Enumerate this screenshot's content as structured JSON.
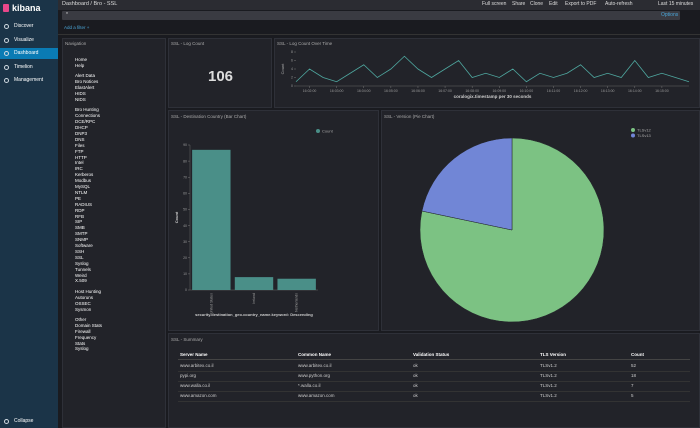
{
  "topbar": {
    "breadcrumb": "Dashboard / Bro - SSL",
    "actions": [
      "Full screen",
      "Share",
      "Clone",
      "Edit",
      "Export to PDF",
      "Auto-refresh"
    ],
    "time": "Last 15 minutes"
  },
  "search": {
    "query": "*",
    "options": "Options"
  },
  "filter": "Add a filter +",
  "sidebar": {
    "logo": "kibana",
    "items": [
      "Discover",
      "Visualize",
      "Dashboard",
      "Timelion",
      "Management"
    ],
    "active": 2,
    "collapse": "Collapse"
  },
  "navigation": {
    "title": "Navigation",
    "groups": [
      {
        "items": [
          "Home",
          "Help"
        ]
      },
      {
        "title": "Alert Data",
        "items": [
          "Bro Notices",
          "ElastAlert",
          "HIDS",
          "NIDS"
        ]
      },
      {
        "title": "Bro Hunting",
        "items": [
          "Connections",
          "DCE/RPC",
          "DHCP",
          "DNP3",
          "DNS",
          "Files",
          "FTP",
          "HTTP",
          "Intel",
          "IRC",
          "Kerberos",
          "Modbus",
          "MySQL",
          "NTLM",
          "PE",
          "RADIUS",
          "RDP",
          "RFB",
          "SIP",
          "SMB",
          "SMTP",
          "SNMP",
          "Software",
          "SSH",
          "SSL",
          "Syslog",
          "Tunnels",
          "Weird",
          "X.509"
        ]
      },
      {
        "title": "Host Hunting",
        "items": [
          "Autoruns",
          "OSSEC",
          "Sysmon"
        ]
      },
      {
        "title": "Other",
        "items": [
          "Domain Stats",
          "Firewall",
          "Frequency",
          "Stats",
          "Syslog"
        ]
      }
    ]
  },
  "log_count": {
    "title": "SSL - Log Count",
    "value": 106
  },
  "timeline": {
    "type": "line",
    "title": "SSL - Log Count Over Time",
    "y_label": "Count",
    "x_label": "coralogix.timestamp per 30 seconds",
    "x": [
      "16:01:30",
      "16:02:00",
      "16:02:30",
      "16:03:00",
      "16:03:30",
      "16:04:00",
      "16:04:30",
      "16:05:00",
      "16:05:30",
      "16:06:00",
      "16:06:30",
      "16:07:00",
      "16:07:30",
      "16:08:00",
      "16:08:30",
      "16:09:00",
      "16:09:30",
      "16:10:00",
      "16:10:30",
      "16:11:00",
      "16:11:30",
      "16:12:00",
      "16:12:30",
      "16:13:00",
      "16:13:30",
      "16:14:00",
      "16:14:30",
      "16:15:00",
      "16:15:30",
      "16:16:00"
    ],
    "values": [
      1,
      4,
      2,
      1,
      3,
      5,
      2,
      4,
      7,
      4,
      2,
      4,
      6,
      2,
      3,
      2,
      4,
      1,
      3,
      2,
      3,
      5,
      2,
      3,
      2,
      6,
      2,
      3,
      2,
      1
    ],
    "xticks": [
      "16:02:00",
      "16:03:00",
      "16:04:00",
      "16:05:00",
      "16:06:00",
      "16:07:00",
      "16:08:00",
      "16:09:00",
      "16:10:00",
      "16:11:00",
      "16:12:00",
      "16:13:00",
      "16:14:00",
      "16:15:00"
    ],
    "ylim": [
      0,
      8
    ],
    "yticks": [
      0,
      2,
      4,
      6,
      8
    ],
    "color": "#4fa8a0"
  },
  "bar_chart": {
    "type": "bar",
    "title": "SSL - Destination Country (Bar Chart)",
    "legend": "Count",
    "y_label": "Count",
    "x_label": "security.destination_geo.country_name.keyword: Descending",
    "categories": [
      "United States",
      "Ireland",
      "Netherlands"
    ],
    "values": [
      87,
      8,
      7
    ],
    "ylim": [
      0,
      90
    ],
    "yticks": [
      0,
      10,
      20,
      30,
      40,
      50,
      60,
      70,
      80,
      90
    ],
    "color": "#4a8f88"
  },
  "pie_chart": {
    "type": "pie",
    "title": "SSL - Version (Pie Chart)",
    "categories": [
      "TLSv12",
      "TLSv13"
    ],
    "values": [
      83,
      23
    ],
    "colors": [
      "#7cc283",
      "#7186d6"
    ],
    "legend": "top-right"
  },
  "table": {
    "title": "SSL - Summary",
    "columns": [
      "Server Name",
      "Common Name",
      "Validation Status",
      "TLS Version",
      "Count"
    ],
    "rows": [
      [
        "www.arbitex.co.il",
        "www.arbitex.co.il",
        "ok",
        "TLSv1.2",
        52
      ],
      [
        "pypi.org",
        "www.python.org",
        "ok",
        "TLSv1.2",
        18
      ],
      [
        "www.walla.co.il",
        "*.walla.co.il",
        "ok",
        "TLSv1.2",
        7
      ],
      [
        "www.amazon.com",
        "www.amazon.com",
        "ok",
        "TLSv1.2",
        5
      ]
    ]
  }
}
